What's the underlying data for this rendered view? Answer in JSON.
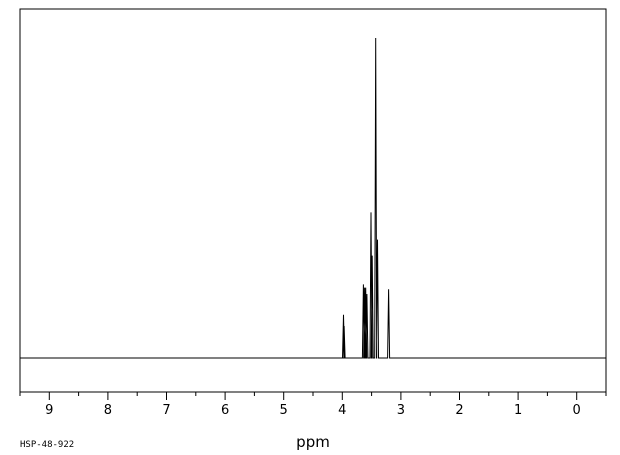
{
  "chart_data": {
    "type": "line",
    "title": "",
    "xlabel": "ppm",
    "ylabel": "",
    "x_reversed": true,
    "xlim": [
      9.5,
      -0.5
    ],
    "ylim": [
      0,
      1
    ],
    "grid": false,
    "major_ticks": [
      9,
      8,
      7,
      6,
      5,
      4,
      3,
      2,
      1,
      0
    ],
    "tick_labels": [
      "9",
      "8",
      "7",
      "6",
      "5",
      "4",
      "3",
      "2",
      "1",
      "0"
    ],
    "baseline": 0.0,
    "peaks": [
      {
        "ppm": 3.98,
        "height": 0.135
      },
      {
        "ppm": 3.97,
        "height": 0.1
      },
      {
        "ppm": 3.64,
        "height": 0.23
      },
      {
        "ppm": 3.62,
        "height": 0.22
      },
      {
        "ppm": 3.6,
        "height": 0.22
      },
      {
        "ppm": 3.58,
        "height": 0.2
      },
      {
        "ppm": 3.51,
        "height": 0.455
      },
      {
        "ppm": 3.49,
        "height": 0.32
      },
      {
        "ppm": 3.43,
        "height": 1.0
      },
      {
        "ppm": 3.4,
        "height": 0.37
      },
      {
        "ppm": 3.21,
        "height": 0.215
      }
    ],
    "line_color": "#000000"
  },
  "footer": {
    "spectrum_id": "HSP-48-922"
  }
}
